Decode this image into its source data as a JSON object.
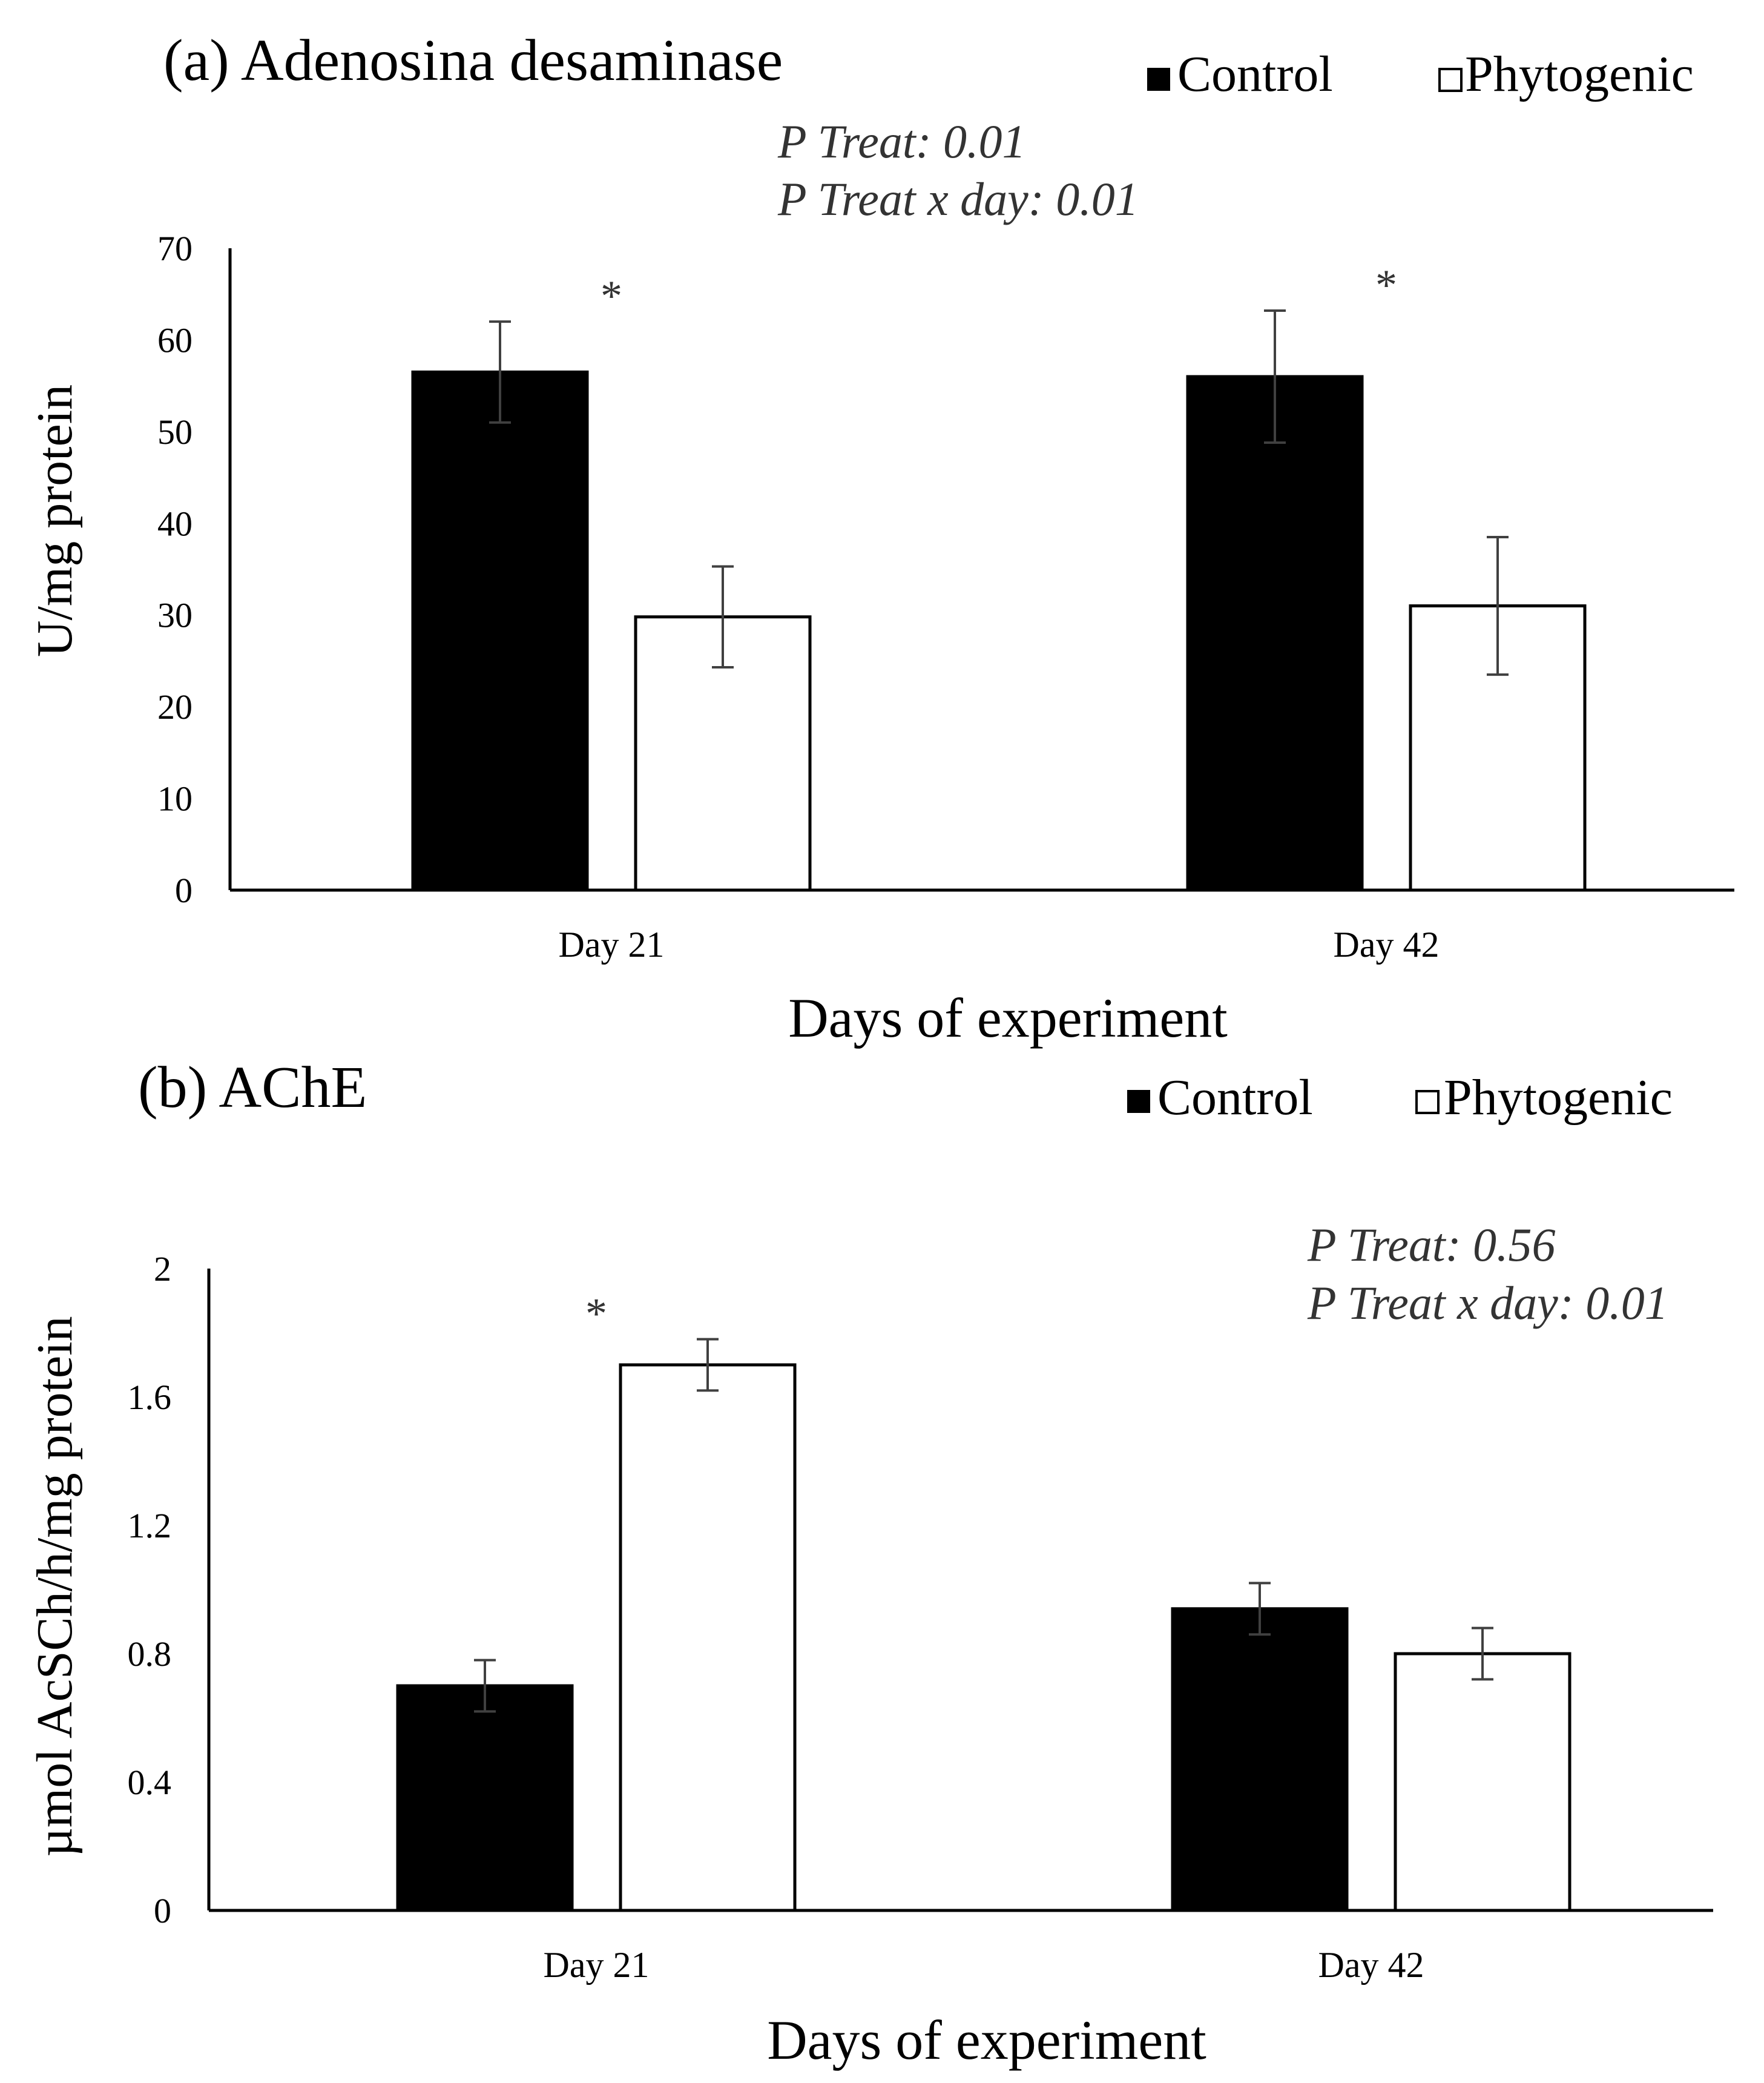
{
  "colors": {
    "control": "#000000",
    "phytogenic": "#ffffff",
    "axis": "#000000",
    "errorbar": "#404040",
    "annotation": "#333333"
  },
  "chart_data": [
    {
      "type": "bar",
      "panel": "a",
      "title": "(a) Adenosina  desaminase",
      "xlabel": "Days of experiment",
      "ylabel": "U/mg protein",
      "categories": [
        "Day 21",
        "Day 42"
      ],
      "ylim": [
        0,
        70
      ],
      "yticks": [
        "0",
        "10",
        "20",
        "30",
        "40",
        "50",
        "60",
        "70"
      ],
      "grid": false,
      "legend_position": "top-right",
      "series": [
        {
          "name": "Control",
          "color": "#000000",
          "values": [
            56.5,
            56.0
          ],
          "errors": [
            5.5,
            7.2
          ]
        },
        {
          "name": "Phytogenic",
          "color": "#ffffff",
          "values": [
            29.8,
            31.0
          ],
          "errors": [
            5.5,
            7.5
          ]
        }
      ],
      "annotations": {
        "stats": [
          "P Treat: 0.01",
          "P Treat x day: 0.01"
        ],
        "stats_position": "top-center",
        "significance": [
          {
            "category": "Day 21",
            "label": "*"
          },
          {
            "category": "Day 42",
            "label": "*"
          }
        ]
      }
    },
    {
      "type": "bar",
      "panel": "b",
      "title": "(b) AChE",
      "xlabel": "Days of experiment",
      "ylabel": "µmol AcSCh/h/mg protein",
      "categories": [
        "Day 21",
        "Day 42"
      ],
      "ylim": [
        0,
        2
      ],
      "yticks": [
        "0",
        "0.4",
        "0.8",
        "1.2",
        "1.6",
        "2"
      ],
      "grid": false,
      "legend_position": "top-right",
      "series": [
        {
          "name": "Control",
          "color": "#000000",
          "values": [
            0.7,
            0.94
          ],
          "errors": [
            0.08,
            0.08
          ]
        },
        {
          "name": "Phytogenic",
          "color": "#ffffff",
          "values": [
            1.7,
            0.8
          ],
          "errors": [
            0.08,
            0.08
          ]
        }
      ],
      "annotations": {
        "stats": [
          "P Treat: 0.56",
          "P Treat x day: 0.01"
        ],
        "stats_position": "top-right",
        "significance": [
          {
            "category": "Day 21",
            "label": "*"
          }
        ]
      }
    }
  ]
}
